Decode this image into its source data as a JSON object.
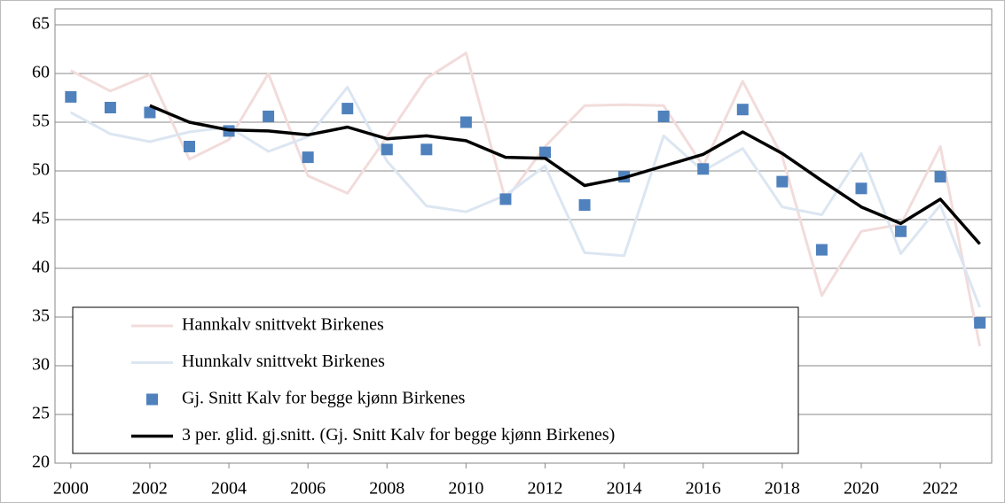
{
  "chart_data": {
    "type": "line",
    "x": [
      2000,
      2001,
      2002,
      2003,
      2004,
      2005,
      2006,
      2007,
      2008,
      2009,
      2010,
      2011,
      2012,
      2013,
      2014,
      2015,
      2016,
      2017,
      2018,
      2019,
      2020,
      2021,
      2022,
      2023
    ],
    "series": [
      {
        "name": "Hannkalv snittvekt Birkenes",
        "color": "#f2dcdb",
        "style": "line",
        "values": [
          60.3,
          58.2,
          59.9,
          51.2,
          53.2,
          60.0,
          49.5,
          47.7,
          53.5,
          59.5,
          62.1,
          47.0,
          52.5,
          56.7,
          56.8,
          56.7,
          50.5,
          59.2,
          51.5,
          37.2,
          43.8,
          44.5,
          52.5,
          32.0
        ]
      },
      {
        "name": "Hunnkalv snittvekt Birkenes",
        "color": "#dce6f2",
        "style": "line",
        "values": [
          56.0,
          53.8,
          53.0,
          54.0,
          54.5,
          52.0,
          53.5,
          58.6,
          51.0,
          46.4,
          45.8,
          47.5,
          50.5,
          41.6,
          41.3,
          53.6,
          50.0,
          52.3,
          46.3,
          45.5,
          51.8,
          41.5,
          46.5,
          36.0
        ]
      },
      {
        "name": "Gj. Snitt Kalv for begge kjønn Birkenes",
        "color": "#4f81bd",
        "style": "marker",
        "values": [
          57.6,
          56.5,
          56.0,
          52.5,
          54.1,
          55.6,
          51.4,
          56.4,
          52.2,
          52.2,
          55.0,
          47.1,
          51.9,
          46.5,
          49.4,
          55.6,
          50.2,
          56.3,
          48.9,
          41.9,
          48.2,
          43.8,
          49.4,
          34.4
        ]
      },
      {
        "name": "3 per. glid. gj.snitt. (Gj. Snitt Kalv for begge kjønn Birkenes)",
        "color": "#000000",
        "style": "line",
        "values": [
          null,
          null,
          56.7,
          55.0,
          54.2,
          54.1,
          53.7,
          54.5,
          53.3,
          53.6,
          53.1,
          51.4,
          51.3,
          48.5,
          49.3,
          50.5,
          51.7,
          54.0,
          51.8,
          49.0,
          46.3,
          44.6,
          47.1,
          42.5
        ]
      }
    ],
    "xlim": [
      1999.6,
      2023.3
    ],
    "xticks": [
      2000,
      2002,
      2004,
      2006,
      2008,
      2010,
      2012,
      2014,
      2016,
      2018,
      2020,
      2022
    ],
    "ylim": [
      20,
      65
    ],
    "yticks": [
      20,
      25,
      30,
      35,
      40,
      45,
      50,
      55,
      60,
      65
    ],
    "grid": true,
    "legend": "lower left"
  }
}
